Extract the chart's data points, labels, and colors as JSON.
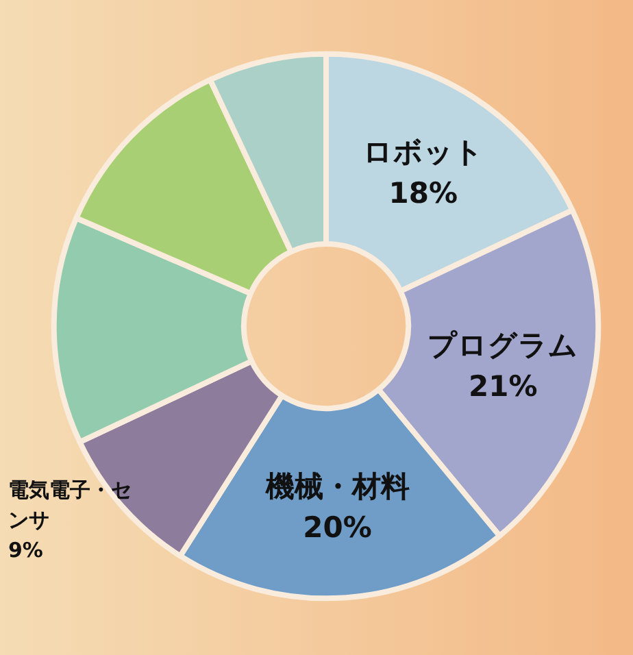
{
  "chart_data": {
    "type": "donut",
    "categories": [
      "ロボット",
      "プログラム",
      "機械・材料",
      "電気電子・センサ",
      null,
      null,
      null
    ],
    "values": [
      18,
      21,
      20,
      9,
      13.5,
      11.5,
      7
    ],
    "value_labels": [
      "18%",
      "21%",
      "20%",
      "9%",
      null,
      null,
      null
    ],
    "colors": [
      "#bcd6e2",
      "#a3a6cc",
      "#6f9dc8",
      "#8e7c9c",
      "#93cbae",
      "#a9cf74",
      "#abd0c8"
    ],
    "legend": false
  }
}
